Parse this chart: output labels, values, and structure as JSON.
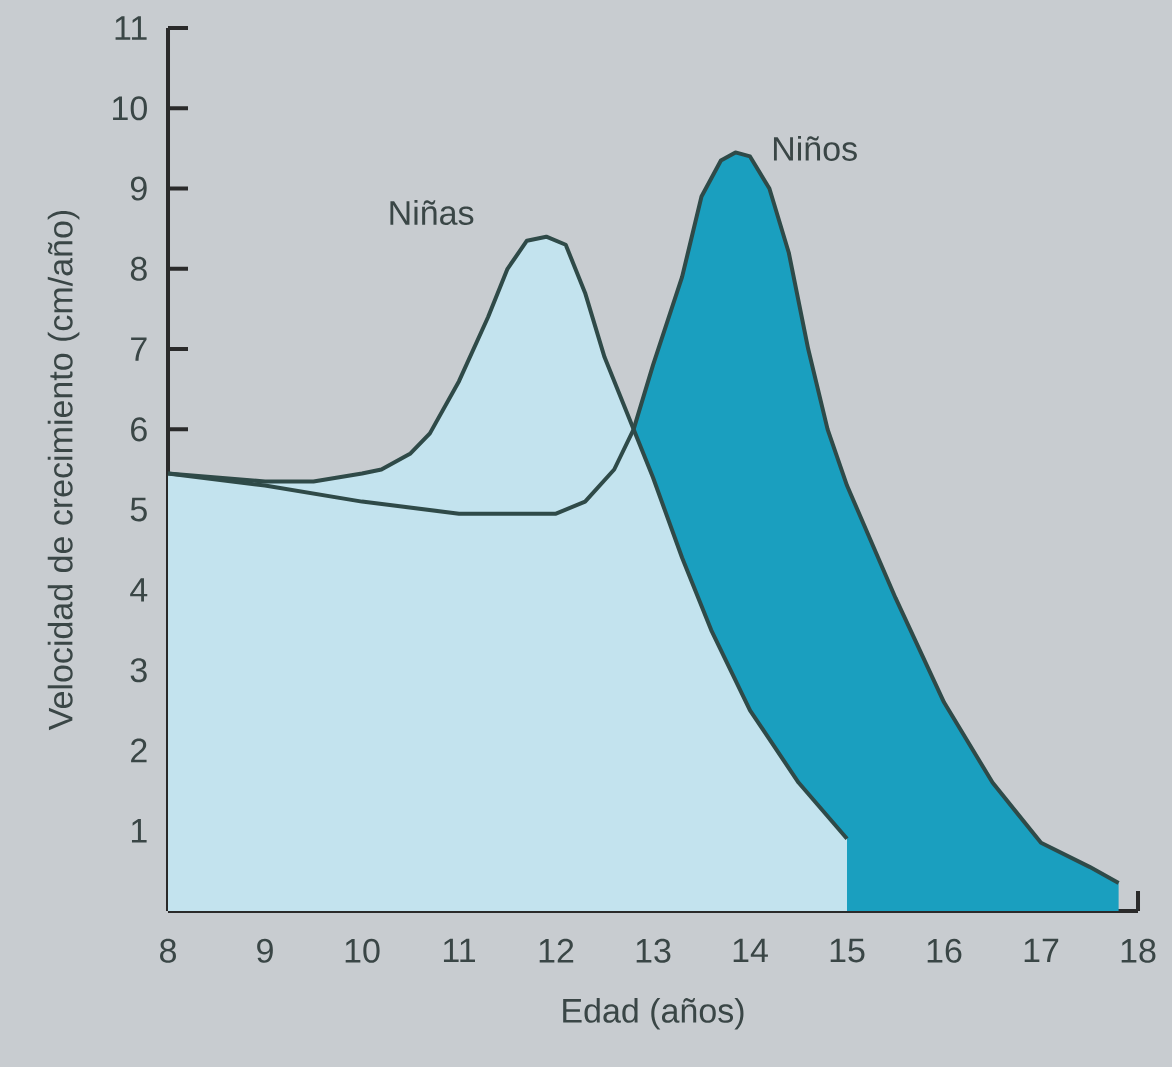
{
  "chart_data": {
    "type": "area",
    "xlabel": "Edad (años)",
    "ylabel": "Velocidad de crecimiento (cm/año)",
    "xlim": [
      8,
      18
    ],
    "ylim": [
      0,
      11
    ],
    "xticks": [
      8,
      9,
      10,
      11,
      12,
      13,
      14,
      15,
      16,
      17,
      18
    ],
    "yticks": [
      1,
      2,
      3,
      4,
      5,
      6,
      7,
      8,
      9,
      10,
      11
    ],
    "legend": false,
    "grid": false,
    "series": [
      {
        "name": "Niños",
        "color": "#1a9fbf",
        "x": [
          8,
          9,
          10,
          11,
          12,
          12.3,
          12.6,
          12.8,
          13,
          13.3,
          13.5,
          13.7,
          13.85,
          14,
          14.2,
          14.4,
          14.6,
          14.8,
          15,
          15.5,
          16,
          16.5,
          17,
          17.5,
          17.8
        ],
        "values": [
          5.45,
          5.3,
          5.1,
          4.95,
          4.95,
          5.1,
          5.5,
          6.0,
          6.8,
          7.9,
          8.9,
          9.35,
          9.45,
          9.4,
          9.0,
          8.2,
          7.0,
          6.0,
          5.3,
          3.9,
          2.6,
          1.6,
          0.85,
          0.55,
          0.35
        ]
      },
      {
        "name": "Niñas",
        "color": "#c3e3ee",
        "x": [
          8,
          8.5,
          9,
          9.5,
          10,
          10.2,
          10.5,
          10.7,
          11,
          11.3,
          11.5,
          11.7,
          11.9,
          12.1,
          12.3,
          12.5,
          12.8,
          13,
          13.3,
          13.6,
          14,
          14.5,
          15
        ],
        "values": [
          5.45,
          5.4,
          5.35,
          5.35,
          5.45,
          5.5,
          5.7,
          5.95,
          6.6,
          7.4,
          8.0,
          8.35,
          8.4,
          8.3,
          7.7,
          6.9,
          6.0,
          5.4,
          4.4,
          3.5,
          2.5,
          1.6,
          0.9
        ]
      }
    ]
  }
}
